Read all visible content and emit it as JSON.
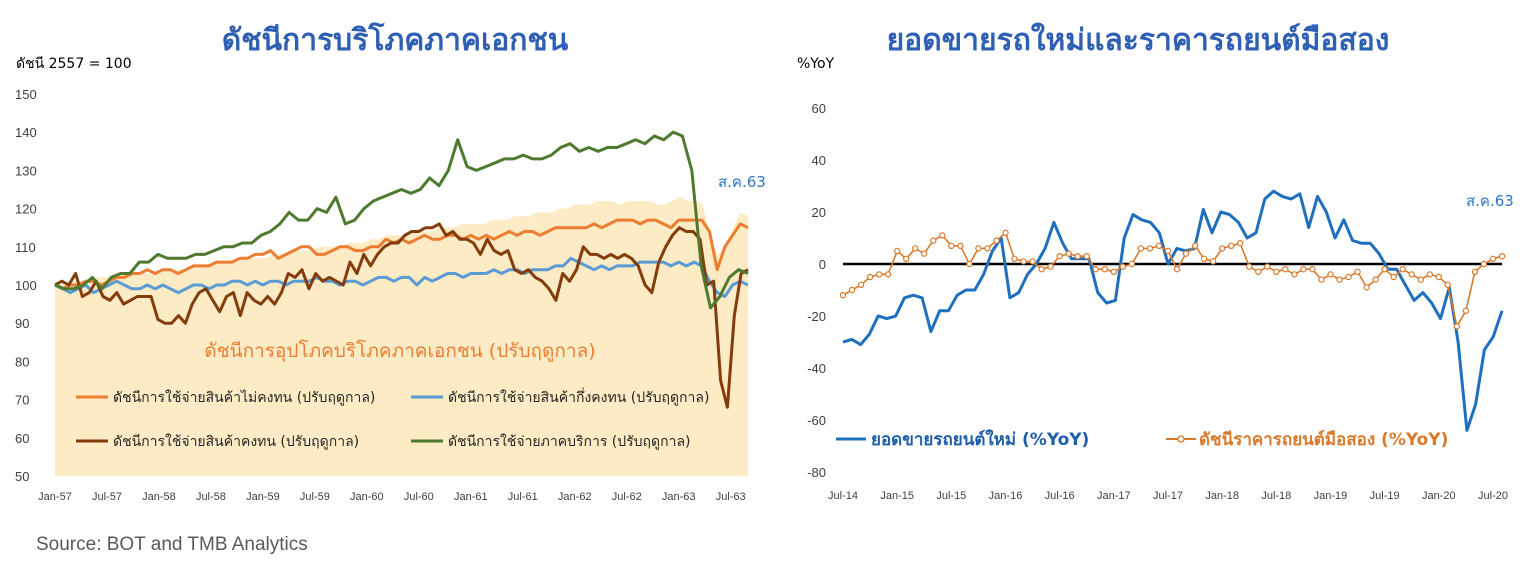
{
  "source": "Source:  BOT and TMB Analytics",
  "chart_data": [
    {
      "type": "line",
      "title": "ดัชนีการบริโภคภาคเอกชน",
      "ylabel": "ดัชนี 2557 = 100",
      "annotation": "ส.ค.63",
      "area_label": "ดัชนีการอุปโภคบริโภคภาคเอกชน (ปรับฤดูกาล)",
      "ylim": [
        50,
        150
      ],
      "yticks": [
        50,
        60,
        70,
        80,
        90,
        100,
        110,
        120,
        130,
        140,
        150
      ],
      "xticks": [
        "Jan-57",
        "Jul-57",
        "Jan-58",
        "Jul-58",
        "Jan-59",
        "Jul-59",
        "Jan-60",
        "Jul-60",
        "Jan-61",
        "Jul-61",
        "Jan-62",
        "Jul-62",
        "Jan-63",
        "Jul-63"
      ],
      "x_start": "Jan-57",
      "area": {
        "color": "#FCEBC4",
        "values": [
          100,
          100,
          101,
          101,
          101,
          102,
          102,
          102,
          102,
          103,
          103,
          103,
          103,
          103,
          104,
          104,
          104,
          104,
          104,
          105,
          105,
          105,
          106,
          106,
          106,
          107,
          107,
          107,
          107,
          108,
          108,
          108,
          109,
          109,
          109,
          110,
          110,
          110,
          110,
          111,
          111,
          111,
          112,
          112,
          113,
          113,
          113,
          113,
          114,
          114,
          114,
          115,
          115,
          115,
          116,
          116,
          116,
          116,
          117,
          117,
          117,
          118,
          118,
          118,
          119,
          119,
          119,
          120,
          120,
          121,
          121,
          121,
          122,
          122,
          122,
          121,
          122,
          122,
          122,
          122,
          121,
          121,
          122,
          123,
          122,
          122,
          121,
          112,
          108,
          110,
          115,
          119,
          118
        ]
      },
      "series": [
        {
          "name": "ดัชนีการใช้จ่ายสินค้าไม่คงทน (ปรับฤดูกาล)",
          "color": "#ED7D31",
          "values": [
            100,
            99,
            100,
            100,
            101,
            101,
            100,
            101,
            102,
            102,
            103,
            103,
            104,
            103,
            104,
            104,
            103,
            104,
            105,
            105,
            105,
            106,
            106,
            106,
            107,
            107,
            108,
            108,
            109,
            107,
            108,
            109,
            110,
            110,
            108,
            108,
            109,
            110,
            110,
            109,
            109,
            110,
            110,
            112,
            111,
            112,
            111,
            112,
            113,
            112,
            112,
            113,
            113,
            112,
            113,
            112,
            113,
            112,
            113,
            114,
            113,
            114,
            114,
            113,
            114,
            115,
            115,
            115,
            115,
            115,
            116,
            115,
            116,
            117,
            117,
            117,
            116,
            117,
            117,
            116,
            115,
            117,
            117,
            117,
            117,
            114,
            104,
            110,
            113,
            116,
            115
          ]
        },
        {
          "name": "ดัชนีการใช้จ่ายสินค้ากึ่งคงทน (ปรับฤดูกาล)",
          "color": "#5B9BD5",
          "values": [
            100,
            99,
            98,
            99,
            100,
            98,
            99,
            100,
            101,
            100,
            99,
            99,
            100,
            99,
            100,
            99,
            98,
            99,
            100,
            100,
            99,
            100,
            100,
            101,
            101,
            100,
            101,
            100,
            101,
            101,
            100,
            101,
            101,
            101,
            102,
            101,
            101,
            100,
            101,
            101,
            100,
            101,
            102,
            102,
            101,
            102,
            102,
            100,
            102,
            101,
            102,
            103,
            103,
            102,
            103,
            103,
            103,
            104,
            103,
            104,
            104,
            103,
            104,
            104,
            104,
            105,
            105,
            107,
            106,
            105,
            104,
            105,
            104,
            105,
            105,
            105,
            106,
            106,
            106,
            106,
            105,
            106,
            105,
            106,
            105,
            101,
            98,
            97,
            100,
            101,
            100
          ]
        },
        {
          "name": "ดัชนีการใช้จ่ายสินค้าคงทน (ปรับฤดูกาล)",
          "color": "#843C0C",
          "values": [
            100,
            101,
            100,
            103,
            97,
            98,
            101,
            97,
            96,
            98,
            95,
            96,
            97,
            97,
            97,
            91,
            90,
            90,
            92,
            90,
            95,
            98,
            99,
            96,
            93,
            97,
            98,
            92,
            98,
            96,
            95,
            97,
            95,
            98,
            103,
            102,
            104,
            99,
            103,
            101,
            102,
            101,
            100,
            106,
            103,
            108,
            105,
            108,
            110,
            111,
            111,
            113,
            114,
            114,
            115,
            115,
            116,
            113,
            114,
            112,
            112,
            111,
            108,
            112,
            109,
            108,
            109,
            104,
            103,
            104,
            102,
            101,
            99,
            96,
            103,
            101,
            104,
            110,
            108,
            108,
            107,
            108,
            107,
            108,
            107,
            105,
            100,
            98,
            106,
            110,
            113,
            115,
            114,
            114,
            112,
            100,
            101,
            75,
            68,
            92,
            103,
            104
          ]
        },
        {
          "name": "ดัชนีการใช้จ่ายภาคบริการ (ปรับฤดูกาล)",
          "color": "#4E7A2E",
          "values": [
            100,
            99,
            99,
            100,
            102,
            99,
            102,
            103,
            103,
            106,
            106,
            108,
            107,
            107,
            107,
            108,
            108,
            109,
            110,
            110,
            111,
            111,
            113,
            114,
            116,
            119,
            117,
            117,
            120,
            119,
            123,
            116,
            117,
            120,
            122,
            123,
            124,
            125,
            124,
            125,
            128,
            126,
            130,
            138,
            131,
            130,
            131,
            132,
            133,
            133,
            134,
            133,
            133,
            134,
            136,
            137,
            135,
            136,
            135,
            136,
            136,
            137,
            138,
            137,
            139,
            138,
            140,
            139,
            130,
            105,
            94,
            97,
            102,
            104,
            103
          ]
        }
      ]
    },
    {
      "type": "line",
      "title": "ยอดขายรถใหม่และราคารถยนต์มือสอง",
      "ylabel": "%YoY",
      "annotation": "ส.ค.63",
      "ylim": [
        -80,
        60
      ],
      "yticks": [
        60,
        40,
        20,
        0,
        -20,
        -40,
        -60,
        -80
      ],
      "xticks": [
        "Jul-14",
        "Jan-15",
        "Jul-15",
        "Jan-16",
        "Jul-16",
        "Jan-17",
        "Jul-17",
        "Jan-18",
        "Jul-18",
        "Jan-19",
        "Jul-19",
        "Jan-20",
        "Jul-20"
      ],
      "x_start": "Jul-14",
      "x_end": "Aug-20",
      "series": [
        {
          "name": "ยอดขายรถยนต์ใหม่ (%YoY)",
          "color": "#1F6FBF",
          "marker": "none",
          "values": [
            -30,
            -29,
            -31,
            -27,
            -20,
            -21,
            -20,
            -13,
            -12,
            -13,
            -26,
            -18,
            -18,
            -12,
            -10,
            -10,
            -4,
            5,
            10,
            -13,
            -11,
            -4,
            0,
            6,
            16,
            8,
            2,
            2,
            2,
            -11,
            -15,
            -14,
            10,
            19,
            17,
            16,
            12,
            0,
            6,
            5,
            6,
            21,
            12,
            20,
            19,
            16,
            10,
            12,
            25,
            28,
            26,
            25,
            27,
            14,
            26,
            20,
            10,
            17,
            9,
            8,
            8,
            4,
            -2,
            -2,
            -8,
            -14,
            -11,
            -15,
            -21,
            -9,
            -30,
            -64,
            -54,
            -33,
            -28,
            -18
          ]
        },
        {
          "name": "ดัชนีราคารถยนต์มือสอง (%YoY)",
          "color": "#D97A2B",
          "marker": "circle",
          "values": [
            -12,
            -10,
            -8,
            -5,
            -4,
            -4,
            5,
            2,
            6,
            4,
            9,
            11,
            7,
            7,
            0,
            6,
            6,
            9,
            12,
            2,
            1,
            1,
            -2,
            -1,
            3,
            4,
            3,
            3,
            -2,
            -2,
            -3,
            -1,
            0,
            6,
            6,
            7,
            5,
            -2,
            4,
            7,
            2,
            1,
            6,
            7,
            8,
            -1,
            -3,
            -1,
            -3,
            -2,
            -4,
            -2,
            -2,
            -6,
            -4,
            -6,
            -5,
            -3,
            -9,
            -6,
            -2,
            -5,
            -2,
            -4,
            -6,
            -4,
            -5,
            -8,
            -24,
            -18,
            -3,
            0,
            2,
            3
          ]
        }
      ]
    }
  ]
}
